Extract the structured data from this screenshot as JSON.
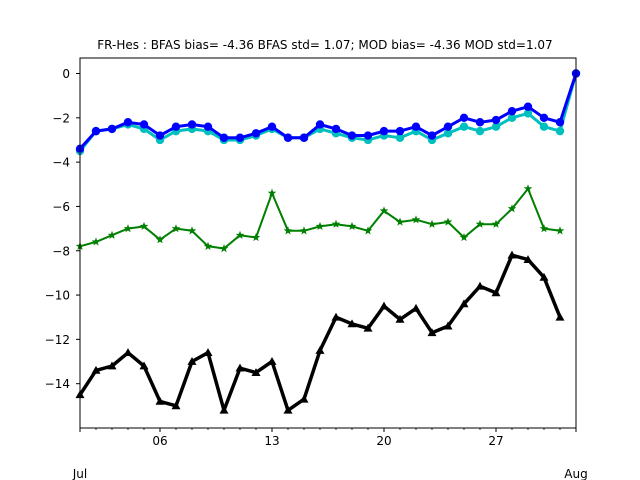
{
  "chart_data": {
    "type": "line",
    "title": "FR-Hes   : BFAS bias= -4.36 BFAS std= 1.07; MOD bias= -4.36 MOD std=1.07",
    "xlabel": "",
    "ylabel": "",
    "xlim": [
      1,
      32
    ],
    "ylim": [
      -16,
      0.7
    ],
    "yticks": [
      0,
      -2,
      -4,
      -6,
      -8,
      -10,
      -12,
      -14
    ],
    "ytick_labels": [
      "0",
      "−2",
      "−4",
      "−6",
      "−8",
      "−10",
      "−12",
      "−14"
    ],
    "xticks": [
      {
        "x": 1,
        "label": "Jul",
        "row": 2
      },
      {
        "x": 6,
        "label": "06",
        "row": 1
      },
      {
        "x": 13,
        "label": "13",
        "row": 1
      },
      {
        "x": 20,
        "label": "20",
        "row": 1
      },
      {
        "x": 27,
        "label": "27",
        "row": 1
      },
      {
        "x": 32,
        "label": "Aug",
        "row": 2
      }
    ],
    "grid": false,
    "series": [
      {
        "color": "#00bfbf",
        "marker": "circle",
        "width": 3,
        "x": [
          1,
          2,
          3,
          4,
          5,
          6,
          7,
          8,
          9,
          10,
          11,
          12,
          13,
          14,
          15,
          16,
          17,
          18,
          19,
          20,
          21,
          22,
          23,
          24,
          25,
          26,
          27,
          28,
          29,
          30,
          31,
          32
        ],
        "y": [
          -3.5,
          -2.6,
          -2.5,
          -2.3,
          -2.5,
          -3.0,
          -2.6,
          -2.5,
          -2.6,
          -3.0,
          -3.0,
          -2.8,
          -2.5,
          -2.9,
          -2.9,
          -2.5,
          -2.7,
          -2.9,
          -3.0,
          -2.8,
          -2.9,
          -2.6,
          -3.0,
          -2.7,
          -2.4,
          -2.6,
          -2.4,
          -2.0,
          -1.8,
          -2.4,
          -2.6,
          0.0
        ]
      },
      {
        "color": "#0000ff",
        "marker": "circle",
        "width": 3,
        "x": [
          1,
          2,
          3,
          4,
          5,
          6,
          7,
          8,
          9,
          10,
          11,
          12,
          13,
          14,
          15,
          16,
          17,
          18,
          19,
          20,
          21,
          22,
          23,
          24,
          25,
          26,
          27,
          28,
          29,
          30,
          31,
          32
        ],
        "y": [
          -3.4,
          -2.6,
          -2.5,
          -2.2,
          -2.3,
          -2.8,
          -2.4,
          -2.3,
          -2.4,
          -2.9,
          -2.9,
          -2.7,
          -2.4,
          -2.9,
          -2.9,
          -2.3,
          -2.5,
          -2.8,
          -2.8,
          -2.6,
          -2.6,
          -2.4,
          -2.8,
          -2.4,
          -2.0,
          -2.2,
          -2.1,
          -1.7,
          -1.5,
          -2.0,
          -2.2,
          0.0
        ]
      },
      {
        "color": "#008000",
        "marker": "star",
        "width": 2,
        "x": [
          1,
          2,
          3,
          4,
          5,
          6,
          7,
          8,
          9,
          10,
          11,
          12,
          13,
          14,
          15,
          16,
          17,
          18,
          19,
          20,
          21,
          22,
          23,
          24,
          25,
          26,
          27,
          28,
          29,
          30,
          31
        ],
        "y": [
          -7.8,
          -7.6,
          -7.3,
          -7.0,
          -6.9,
          -7.5,
          -7.0,
          -7.1,
          -7.8,
          -7.9,
          -7.3,
          -7.4,
          -5.4,
          -7.1,
          -7.1,
          -6.9,
          -6.8,
          -6.9,
          -7.1,
          -6.2,
          -6.7,
          -6.6,
          -6.8,
          -6.7,
          -7.4,
          -6.8,
          -6.8,
          -6.1,
          -5.2,
          -7.0,
          -7.1
        ]
      },
      {
        "color": "#000000",
        "marker": "triangle",
        "width": 3.5,
        "x": [
          1,
          2,
          3,
          4,
          5,
          6,
          7,
          8,
          9,
          10,
          11,
          12,
          13,
          14,
          15,
          16,
          17,
          18,
          19,
          20,
          21,
          22,
          23,
          24,
          25,
          26,
          27,
          28,
          29,
          30,
          31
        ],
        "y": [
          -14.5,
          -13.4,
          -13.2,
          -12.6,
          -13.2,
          -14.8,
          -15.0,
          -13.0,
          -12.6,
          -15.2,
          -13.3,
          -13.5,
          -13.0,
          -15.2,
          -14.7,
          -12.5,
          -11.0,
          -11.3,
          -11.5,
          -10.5,
          -11.1,
          -10.6,
          -11.7,
          -11.4,
          -10.4,
          -9.6,
          -9.9,
          -8.2,
          -8.4,
          -9.2,
          -11.0
        ]
      }
    ]
  }
}
